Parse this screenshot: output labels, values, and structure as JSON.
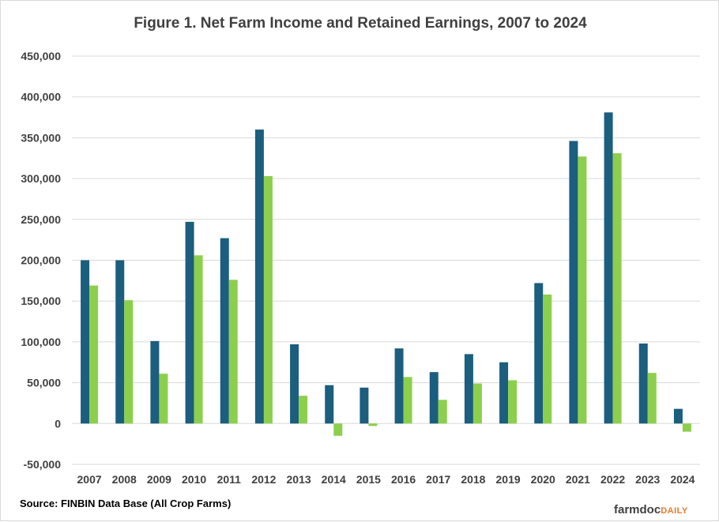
{
  "colors": {
    "net_farm_income": "#1b5e7e",
    "retained_earnings": "#8ccf4d",
    "gridline": "#d9d9d9",
    "text": "#404040"
  },
  "chart_data": {
    "type": "bar",
    "title": "Figure 1. Net Farm Income and Retained Earnings, 2007 to 2024",
    "xlabel": "",
    "ylabel": "",
    "ylim": [
      -50000,
      450000
    ],
    "yticks": [
      -50000,
      0,
      50000,
      100000,
      150000,
      200000,
      250000,
      300000,
      350000,
      400000,
      450000
    ],
    "ytick_labels": [
      "-50,000",
      "0",
      "50,000",
      "100,000",
      "150,000",
      "200,000",
      "250,000",
      "300,000",
      "350,000",
      "400,000",
      "450,000"
    ],
    "grid": true,
    "legend": "none",
    "categories": [
      "2007",
      "2008",
      "2009",
      "2010",
      "2011",
      "2012",
      "2013",
      "2014",
      "2015",
      "2016",
      "2017",
      "2018",
      "2019",
      "2020",
      "2021",
      "2022",
      "2023",
      "2024"
    ],
    "series": [
      {
        "values": [
          200000,
          200000,
          101000,
          247000,
          227000,
          360000,
          97000,
          47000,
          44000,
          92000,
          63000,
          85000,
          75000,
          172000,
          346000,
          381000,
          98000,
          18000
        ]
      },
      {
        "values": [
          169000,
          151000,
          61000,
          206000,
          176000,
          303000,
          34000,
          -15000,
          -3000,
          57000,
          29000,
          49000,
          53000,
          158000,
          327000,
          331000,
          62000,
          -10000
        ]
      }
    ]
  },
  "footer": {
    "source": "Source:  FINBIN Data Base (All Crop Farms)",
    "brand_main": "farmdoc",
    "brand_accent": "DAILY"
  }
}
